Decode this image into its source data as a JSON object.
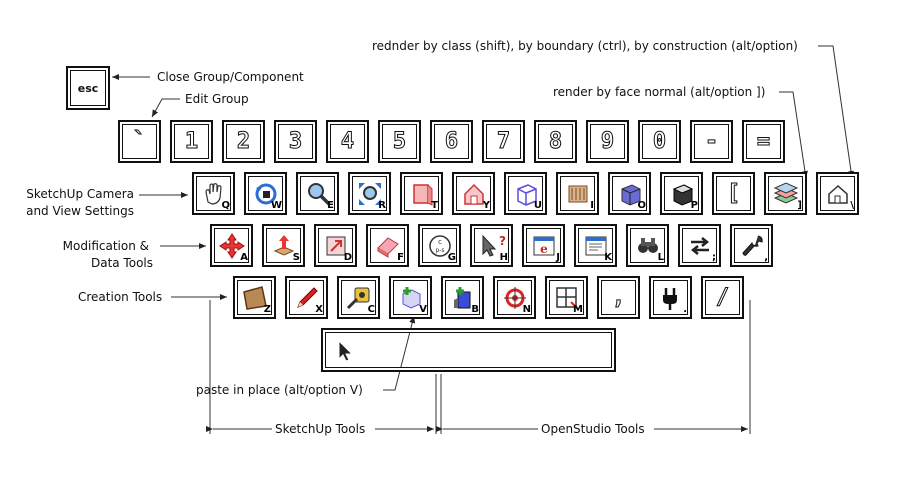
{
  "keys": {
    "esc": "esc",
    "num_row": [
      "`",
      "1",
      "2",
      "3",
      "4",
      "5",
      "6",
      "7",
      "8",
      "9",
      "0",
      "-",
      "="
    ],
    "q_row": [
      {
        "sub": "Q",
        "icon": "hand-icon"
      },
      {
        "sub": "W",
        "icon": "orbit-icon"
      },
      {
        "sub": "E",
        "icon": "zoom-icon"
      },
      {
        "sub": "R",
        "icon": "zoom-extents-icon"
      },
      {
        "sub": "T",
        "icon": "front-view-icon"
      },
      {
        "sub": "Y",
        "icon": "house-view-icon"
      },
      {
        "sub": "U",
        "icon": "wireframe-cube-icon"
      },
      {
        "sub": "I",
        "icon": "hidden-line-icon"
      },
      {
        "sub": "O",
        "icon": "shaded-cube-icon"
      },
      {
        "sub": "P",
        "icon": "perspective-cube-icon"
      },
      {
        "sub": "",
        "icon": "bracket-left",
        "glyph": "["
      },
      {
        "sub": "]",
        "icon": "layers-icon"
      },
      {
        "sub": "\\",
        "icon": "house-outline-icon"
      }
    ],
    "a_row": [
      {
        "sub": "A",
        "icon": "move-arrows-icon"
      },
      {
        "sub": "S",
        "icon": "push-pull-icon"
      },
      {
        "sub": "D",
        "icon": "scale-icon"
      },
      {
        "sub": "F",
        "icon": "eraser-icon"
      },
      {
        "sub": "G",
        "icon": "rotate-icon"
      },
      {
        "sub": "H",
        "icon": "info-cursor-icon"
      },
      {
        "sub": "J",
        "icon": "browser-e-icon"
      },
      {
        "sub": "K",
        "icon": "dialog-window-icon"
      },
      {
        "sub": "L",
        "icon": "binoculars-icon"
      },
      {
        "sub": ";",
        "icon": "swap-arrows-icon"
      },
      {
        "sub": ",",
        "icon": "wrench-icon"
      }
    ],
    "z_row": [
      {
        "sub": "Z",
        "icon": "surface-icon"
      },
      {
        "sub": "X",
        "icon": "pencil-icon"
      },
      {
        "sub": "C",
        "icon": "tape-measure-icon"
      },
      {
        "sub": "V",
        "icon": "box-plus-icon"
      },
      {
        "sub": "B",
        "icon": "building-plus-icon"
      },
      {
        "sub": "N",
        "icon": "target-icon"
      },
      {
        "sub": "M",
        "icon": "grid-window-icon"
      },
      {
        "sub": "",
        "icon": "comma",
        "glyph": ","
      },
      {
        "sub": ".",
        "icon": "plug-icon"
      },
      {
        "sub": "",
        "icon": "slash",
        "glyph": "/"
      }
    ]
  },
  "labels": {
    "close_group": "Close Group/Component",
    "edit_group": "Edit Group",
    "render_class": "rednder by class (shift), by boundary (ctrl), by construction (alt/option)",
    "render_face": "render by face normal (alt/option ])",
    "camera_1": "SketchUp Camera",
    "camera_2": "and View Settings",
    "modification_1": "Modification &",
    "modification_2": "Data Tools",
    "creation": "Creation Tools",
    "paste": "paste in place (alt/option V)",
    "sketchup_tools": "SketchUp Tools",
    "openstudio_tools": "OpenStudio Tools"
  },
  "spacebar": {
    "icon": "arrow-cursor-icon"
  }
}
